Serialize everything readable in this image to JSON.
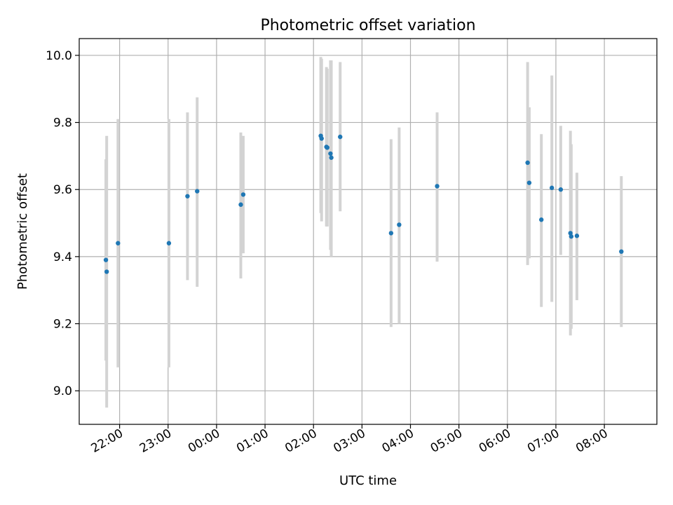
{
  "chart_data": {
    "type": "scatter",
    "title": "Photometric offset variation",
    "xlabel": "UTC time",
    "ylabel": "Photometric offset",
    "x_axis": {
      "kind": "time",
      "min": "21:10",
      "max": "09:05",
      "ticks": [
        "22:00",
        "23:00",
        "00:00",
        "01:00",
        "02:00",
        "03:00",
        "04:00",
        "05:00",
        "06:00",
        "07:00",
        "08:00"
      ]
    },
    "y_axis": {
      "min": 8.9,
      "max": 10.05,
      "ticks": [
        "9.0",
        "9.2",
        "9.4",
        "9.6",
        "9.8",
        "10.0"
      ]
    },
    "grid": true,
    "colors": {
      "point": "#1f77b4",
      "errorbar": "#d3d3d3",
      "grid": "#b0b0b0",
      "axes": "#000000"
    },
    "points": [
      {
        "t": "21:43",
        "y": 9.39,
        "low": 9.09,
        "high": 9.69
      },
      {
        "t": "21:44",
        "y": 9.355,
        "low": 8.95,
        "high": 9.76
      },
      {
        "t": "21:58",
        "y": 9.44,
        "low": 9.07,
        "high": 9.81
      },
      {
        "t": "23:01",
        "y": 9.44,
        "low": 9.07,
        "high": 9.81
      },
      {
        "t": "23:24",
        "y": 9.58,
        "low": 9.33,
        "high": 9.83
      },
      {
        "t": "23:36",
        "y": 9.595,
        "low": 9.31,
        "high": 9.875
      },
      {
        "t": "00:30",
        "y": 9.555,
        "low": 9.335,
        "high": 9.77
      },
      {
        "t": "00:33",
        "y": 9.585,
        "low": 9.41,
        "high": 9.76
      },
      {
        "t": "02:09",
        "y": 9.76,
        "low": 9.53,
        "high": 9.995
      },
      {
        "t": "02:10",
        "y": 9.752,
        "low": 9.505,
        "high": 9.99
      },
      {
        "t": "02:16",
        "y": 9.727,
        "low": 9.49,
        "high": 9.965
      },
      {
        "t": "02:17",
        "y": 9.725,
        "low": 9.49,
        "high": 9.96
      },
      {
        "t": "02:21",
        "y": 9.707,
        "low": 9.42,
        "high": 9.985
      },
      {
        "t": "02:22",
        "y": 9.695,
        "low": 9.4,
        "high": 9.985
      },
      {
        "t": "02:33",
        "y": 9.757,
        "low": 9.535,
        "high": 9.98
      },
      {
        "t": "03:36",
        "y": 9.47,
        "low": 9.19,
        "high": 9.75
      },
      {
        "t": "03:46",
        "y": 9.495,
        "low": 9.2,
        "high": 9.785
      },
      {
        "t": "04:33",
        "y": 9.61,
        "low": 9.385,
        "high": 9.83
      },
      {
        "t": "06:25",
        "y": 9.68,
        "low": 9.375,
        "high": 9.98
      },
      {
        "t": "06:27",
        "y": 9.62,
        "low": 9.395,
        "high": 9.845
      },
      {
        "t": "06:42",
        "y": 9.51,
        "low": 9.25,
        "high": 9.765
      },
      {
        "t": "06:55",
        "y": 9.605,
        "low": 9.265,
        "high": 9.94
      },
      {
        "t": "07:06",
        "y": 9.6,
        "low": 9.405,
        "high": 9.79
      },
      {
        "t": "07:18",
        "y": 9.47,
        "low": 9.165,
        "high": 9.775
      },
      {
        "t": "07:19",
        "y": 9.46,
        "low": 9.185,
        "high": 9.735
      },
      {
        "t": "07:26",
        "y": 9.462,
        "low": 9.27,
        "high": 9.65
      },
      {
        "t": "08:21",
        "y": 9.415,
        "low": 9.19,
        "high": 9.64
      }
    ]
  }
}
